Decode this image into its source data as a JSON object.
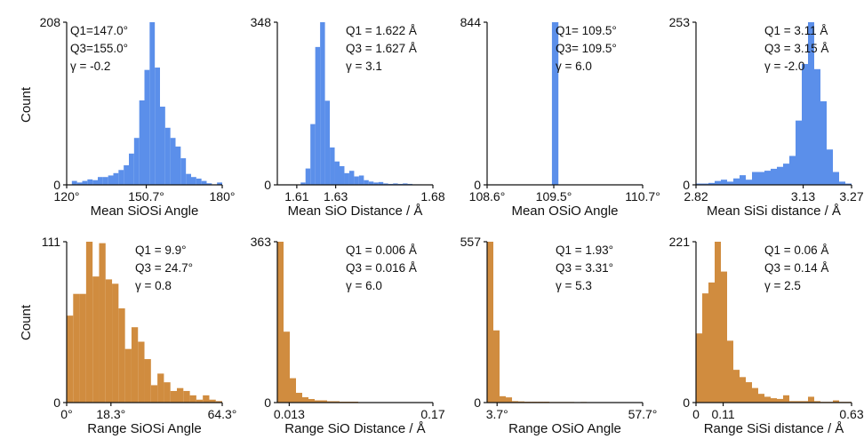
{
  "figure": {
    "row_ylabels": [
      "Count",
      "Count"
    ]
  },
  "colors": {
    "mean_row": "#5b8fea",
    "range_row": "#d08c3f",
    "axis": "#111111"
  },
  "chart_data": [
    {
      "type": "bar",
      "row": 0,
      "col": 0,
      "xlabel": "Mean SiOSi Angle",
      "xlim": [
        120,
        180
      ],
      "ylim": [
        0,
        208
      ],
      "xticks": [
        {
          "value": 120,
          "label": "120°"
        },
        {
          "value": 150.7,
          "label": "150.7°"
        },
        {
          "value": 180,
          "label": "180°"
        }
      ],
      "yticks": [
        {
          "value": 0,
          "label": "0"
        },
        {
          "value": 208,
          "label": "208"
        }
      ],
      "stats": [
        "Q1=147.0°",
        "Q3=155.0°",
        "γ = -0.2"
      ],
      "bin_start": 120,
      "bin_width": 2,
      "values": [
        0,
        5,
        3,
        5,
        7,
        6,
        10,
        10,
        12,
        15,
        19,
        25,
        40,
        60,
        108,
        147,
        208,
        150,
        100,
        73,
        60,
        49,
        34,
        14,
        10,
        8,
        5,
        2,
        0,
        3
      ]
    },
    {
      "type": "bar",
      "row": 0,
      "col": 1,
      "xlabel": "Mean SiO Distance / Å",
      "xlim": [
        1.6,
        1.68
      ],
      "ylim": [
        0,
        348
      ],
      "xticks": [
        {
          "value": 1.61,
          "label": "1.61"
        },
        {
          "value": 1.63,
          "label": "1.63"
        },
        {
          "value": 1.68,
          "label": "1.68"
        }
      ],
      "yticks": [
        {
          "value": 0,
          "label": "0"
        },
        {
          "value": 348,
          "label": "348"
        }
      ],
      "stats": [
        "Q1 = 1.622 Å",
        "Q3 = 1.627 Å",
        "γ = 3.1"
      ],
      "bin_start": 1.612,
      "bin_width": 0.0025,
      "values": [
        5,
        35,
        130,
        295,
        348,
        180,
        80,
        50,
        40,
        25,
        30,
        18,
        20,
        10,
        7,
        5,
        6,
        3,
        2,
        3,
        2,
        3,
        2,
        1,
        1
      ]
    },
    {
      "type": "bar",
      "row": 0,
      "col": 2,
      "xlabel": "Mean OSiO Angle",
      "xlim": [
        108.6,
        110.7
      ],
      "ylim": [
        0,
        844
      ],
      "xticks": [
        {
          "value": 108.6,
          "label": "108.6°"
        },
        {
          "value": 109.5,
          "label": "109.5°"
        },
        {
          "value": 110.7,
          "label": "110.7°"
        }
      ],
      "yticks": [
        {
          "value": 0,
          "label": "0"
        },
        {
          "value": 844,
          "label": "844"
        }
      ],
      "stats": [
        "Q1= 109.5°",
        "Q3= 109.5°",
        "γ = 6.0"
      ],
      "bin_start": 108.6,
      "bin_width": 0.0875,
      "values": [
        2,
        2,
        2,
        2,
        2,
        2,
        2,
        2,
        2,
        2,
        844,
        2,
        2,
        2,
        2,
        2,
        2,
        2,
        2,
        2,
        2,
        2,
        2,
        2
      ]
    },
    {
      "type": "bar",
      "row": 0,
      "col": 3,
      "xlabel": "Mean SiSi distance / Å",
      "xlim": [
        2.82,
        3.27
      ],
      "ylim": [
        0,
        253
      ],
      "xticks": [
        {
          "value": 2.82,
          "label": "2.82"
        },
        {
          "value": 3.13,
          "label": "3.13"
        },
        {
          "value": 3.27,
          "label": "3.27"
        }
      ],
      "yticks": [
        {
          "value": 0,
          "label": "0"
        },
        {
          "value": 253,
          "label": "253"
        }
      ],
      "stats": [
        "Q1 = 3.11 Å",
        "Q3 = 3.15 Å",
        "γ = -2.0"
      ],
      "bin_start": 2.82,
      "bin_width": 0.018,
      "values": [
        2,
        2,
        3,
        6,
        8,
        5,
        10,
        15,
        8,
        20,
        20,
        22,
        25,
        28,
        33,
        45,
        100,
        188,
        253,
        180,
        130,
        55,
        20,
        5,
        2
      ]
    },
    {
      "type": "bar",
      "row": 1,
      "col": 0,
      "xlabel": "Range SiOSi Angle",
      "xlim": [
        0,
        64.3
      ],
      "ylim": [
        0,
        111
      ],
      "xticks": [
        {
          "value": 0,
          "label": "0°"
        },
        {
          "value": 18.3,
          "label": "18.3°"
        },
        {
          "value": 64.3,
          "label": "64.3°"
        }
      ],
      "yticks": [
        {
          "value": 0,
          "label": "0"
        },
        {
          "value": 111,
          "label": "111"
        }
      ],
      "stats": [
        "Q1 = 9.9°",
        "Q3 = 24.7°",
        "γ = 0.8"
      ],
      "bin_start": 0,
      "bin_width": 2.68,
      "values": [
        60,
        75,
        75,
        111,
        87,
        110,
        85,
        82,
        65,
        37,
        52,
        42,
        30,
        12,
        20,
        14,
        8,
        10,
        8,
        5,
        2,
        5,
        2,
        1
      ]
    },
    {
      "type": "bar",
      "row": 1,
      "col": 1,
      "xlabel": "Range SiO Distance / Å",
      "xlim": [
        0,
        0.17
      ],
      "ylim": [
        0,
        363
      ],
      "xticks": [
        {
          "value": 0.013,
          "label": "0.013"
        },
        {
          "value": 0.17,
          "label": "0.17"
        }
      ],
      "yticks": [
        {
          "value": 0,
          "label": "0"
        },
        {
          "value": 363,
          "label": "363"
        }
      ],
      "stats": [
        "Q1 = 0.006 Å",
        "Q3 = 0.016 Å",
        "γ = 6.0"
      ],
      "bin_start": 0,
      "bin_width": 0.0068,
      "values": [
        363,
        160,
        55,
        22,
        12,
        8,
        5,
        5,
        3,
        3,
        2,
        2,
        2,
        1,
        1,
        1,
        1,
        1,
        1,
        0,
        0,
        1,
        0,
        1,
        1
      ]
    },
    {
      "type": "bar",
      "row": 1,
      "col": 2,
      "xlabel": "Range OSiO Angle",
      "xlim": [
        0,
        57.7
      ],
      "ylim": [
        0,
        557
      ],
      "xticks": [
        {
          "value": 3.7,
          "label": "3.7°"
        },
        {
          "value": 57.7,
          "label": "57.7°"
        }
      ],
      "yticks": [
        {
          "value": 0,
          "label": "0"
        },
        {
          "value": 557,
          "label": "557"
        }
      ],
      "stats": [
        "Q1 = 1.93°",
        "Q3 = 3.31°",
        "γ = 5.3"
      ],
      "bin_start": 0,
      "bin_width": 2.31,
      "values": [
        557,
        250,
        22,
        18,
        5,
        4,
        3,
        3,
        3,
        3,
        2,
        2,
        2,
        2,
        1,
        2,
        1,
        1,
        1,
        1,
        1,
        1,
        1,
        1,
        1
      ]
    },
    {
      "type": "bar",
      "row": 1,
      "col": 3,
      "xlabel": "Range SiSi distance / Å",
      "xlim": [
        0,
        0.63
      ],
      "ylim": [
        0,
        221
      ],
      "xticks": [
        {
          "value": 0,
          "label": "0"
        },
        {
          "value": 0.11,
          "label": "0.11"
        },
        {
          "value": 0.63,
          "label": "0.63"
        }
      ],
      "yticks": [
        {
          "value": 0,
          "label": "0"
        },
        {
          "value": 221,
          "label": "221"
        }
      ],
      "stats": [
        "Q1 = 0.06 Å",
        "Q3 = 0.14 Å",
        "γ = 2.5"
      ],
      "bin_start": 0,
      "bin_width": 0.0252,
      "values": [
        95,
        150,
        165,
        221,
        180,
        85,
        45,
        35,
        28,
        20,
        12,
        8,
        6,
        5,
        10,
        2,
        2,
        2,
        8,
        2,
        1,
        1,
        3,
        1,
        1
      ]
    }
  ]
}
